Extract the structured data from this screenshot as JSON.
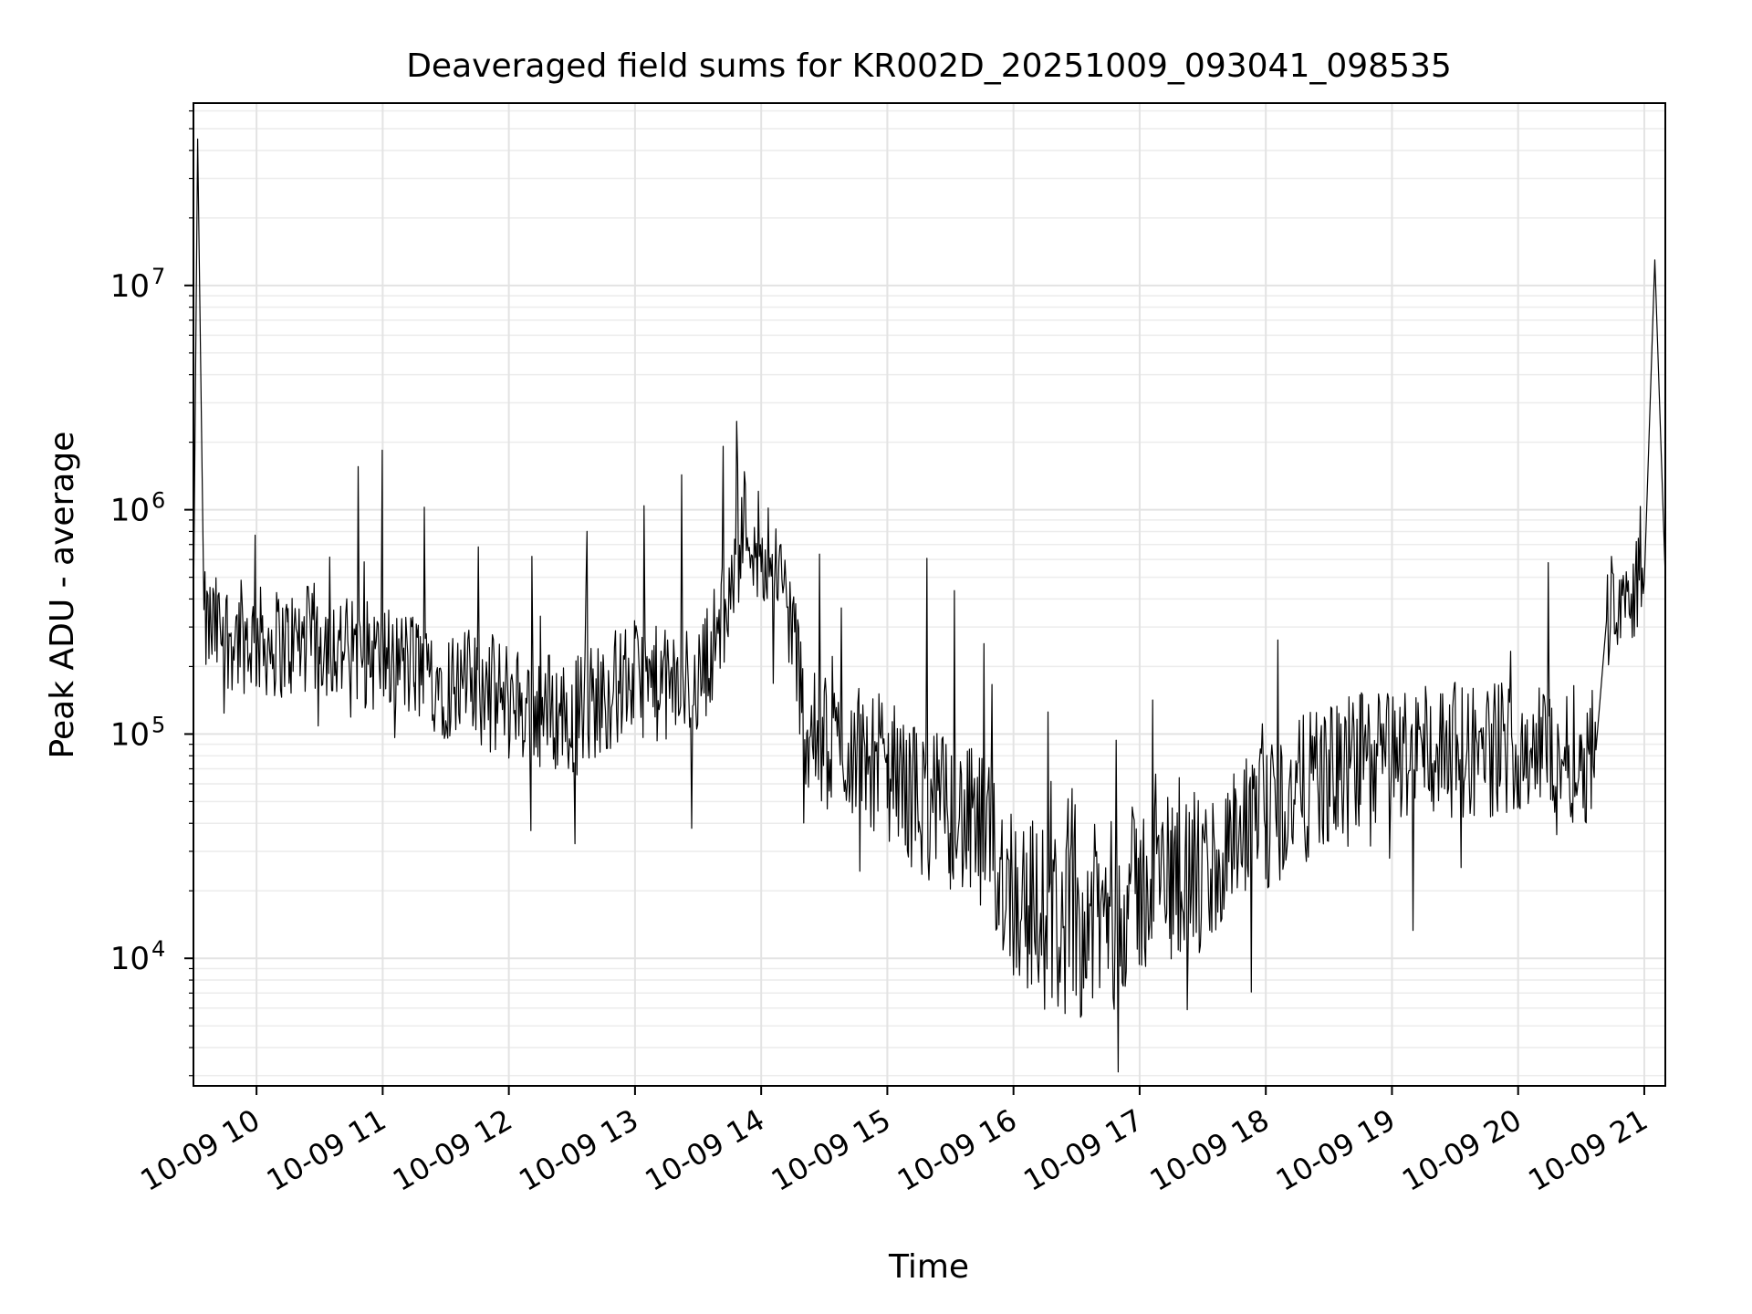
{
  "chart_data": {
    "type": "line",
    "title": "Deaveraged field sums for KR002D_20251009_093041_098535",
    "xlabel": "Time",
    "ylabel": "Peak ADU - average",
    "x_scale": "time",
    "y_scale": "log",
    "xlim": [
      "2025-10-09T09:30",
      "2025-10-09T21:10"
    ],
    "ylim": [
      2700,
      65000000
    ],
    "grid": true,
    "line_color": "#000000",
    "x_tick_labels": [
      "10-09 10",
      "10-09 11",
      "10-09 12",
      "10-09 13",
      "10-09 14",
      "10-09 15",
      "10-09 16",
      "10-09 17",
      "10-09 18",
      "10-09 19",
      "10-09 20",
      "10-09 21"
    ],
    "y_tick_labels": [
      {
        "base": "10",
        "exp": "4"
      },
      {
        "base": "10",
        "exp": "5"
      },
      {
        "base": "10",
        "exp": "6"
      },
      {
        "base": "10",
        "exp": "7"
      }
    ],
    "series": [
      {
        "values": [
          [
            "2025-10-09T09:30",
            350000
          ],
          [
            "2025-10-09T09:32",
            45000000
          ],
          [
            "2025-10-09T09:35",
            300000
          ],
          [
            "2025-10-09T09:45",
            280000
          ],
          [
            "2025-10-09T10:00",
            260000
          ],
          [
            "2025-10-09T10:15",
            250000
          ],
          [
            "2025-10-09T10:30",
            270000
          ],
          [
            "2025-10-09T10:45",
            230000
          ],
          [
            "2025-10-09T11:00",
            220000
          ],
          [
            "2025-10-09T11:15",
            200000
          ],
          [
            "2025-10-09T11:30",
            170000
          ],
          [
            "2025-10-09T11:45",
            160000
          ],
          [
            "2025-10-09T12:00",
            140000
          ],
          [
            "2025-10-09T12:15",
            130000
          ],
          [
            "2025-10-09T12:30",
            120000
          ],
          [
            "2025-10-09T12:45",
            150000
          ],
          [
            "2025-10-09T13:00",
            180000
          ],
          [
            "2025-10-09T13:15",
            160000
          ],
          [
            "2025-10-09T13:30",
            170000
          ],
          [
            "2025-10-09T13:45",
            400000
          ],
          [
            "2025-10-09T13:52",
            900000
          ],
          [
            "2025-10-09T14:00",
            700000
          ],
          [
            "2025-10-09T14:07",
            600000
          ],
          [
            "2025-10-09T14:15",
            300000
          ],
          [
            "2025-10-09T14:22",
            100000
          ],
          [
            "2025-10-09T14:30",
            90000
          ],
          [
            "2025-10-09T14:45",
            85000
          ],
          [
            "2025-10-09T15:00",
            70000
          ],
          [
            "2025-10-09T15:15",
            50000
          ],
          [
            "2025-10-09T15:30",
            45000
          ],
          [
            "2025-10-09T15:45",
            35000
          ],
          [
            "2025-10-09T16:00",
            20000
          ],
          [
            "2025-10-09T16:15",
            15000
          ],
          [
            "2025-10-09T16:30",
            14000
          ],
          [
            "2025-10-09T16:45",
            16000
          ],
          [
            "2025-10-09T17:00",
            20000
          ],
          [
            "2025-10-09T17:15",
            25000
          ],
          [
            "2025-10-09T17:30",
            22000
          ],
          [
            "2025-10-09T17:45",
            30000
          ],
          [
            "2025-10-09T18:00",
            40000
          ],
          [
            "2025-10-09T18:15",
            55000
          ],
          [
            "2025-10-09T18:30",
            65000
          ],
          [
            "2025-10-09T18:45",
            75000
          ],
          [
            "2025-10-09T19:00",
            80000
          ],
          [
            "2025-10-09T19:15",
            85000
          ],
          [
            "2025-10-09T19:30",
            85000
          ],
          [
            "2025-10-09T19:45",
            85000
          ],
          [
            "2025-10-09T20:00",
            90000
          ],
          [
            "2025-10-09T20:15",
            85000
          ],
          [
            "2025-10-09T20:30",
            80000
          ],
          [
            "2025-10-09T20:37",
            85000
          ],
          [
            "2025-10-09T20:42",
            350000
          ],
          [
            "2025-10-09T20:50",
            450000
          ],
          [
            "2025-10-09T21:00",
            480000
          ],
          [
            "2025-10-09T21:05",
            13000000
          ],
          [
            "2025-10-09T21:10",
            500000
          ]
        ]
      }
    ]
  }
}
